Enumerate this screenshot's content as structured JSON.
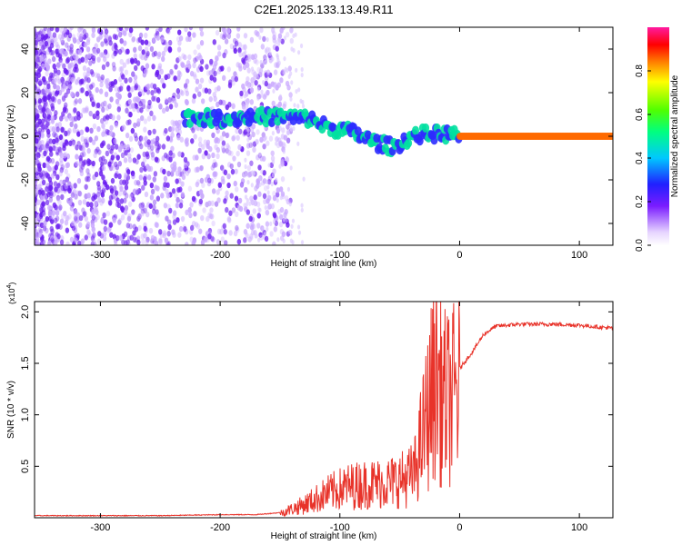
{
  "title": "C2E1.2025.133.13.49.R11",
  "chart_data": [
    {
      "type": "heatmap",
      "xlabel": "Height of straight line (km)",
      "ylabel": "Frequency (Hz)",
      "xlim": [
        -355,
        128
      ],
      "ylim": [
        -50,
        50
      ],
      "x_ticks": [
        -300,
        -200,
        -100,
        0,
        100
      ],
      "y_ticks": [
        -40,
        -20,
        0,
        20,
        40
      ],
      "colorbar": {
        "label": "Normalized spectral amplitude",
        "range": [
          0,
          1
        ],
        "ticks": [
          0.0,
          0.2,
          0.4,
          0.6,
          0.8
        ]
      },
      "ridge_trace": {
        "description_points_x": [
          -230,
          -200,
          -170,
          -150,
          -125,
          -110,
          -90,
          -70,
          -55,
          -40,
          -30,
          -20,
          -10,
          0,
          50,
          128
        ],
        "description_points_y": [
          9,
          8,
          9,
          9,
          8,
          4,
          2,
          -3,
          -5,
          0,
          1,
          1,
          1,
          0,
          0,
          0
        ]
      }
    },
    {
      "type": "line",
      "xlabel": "Height of straight line (km)",
      "ylabel": "SNR (10 * v/v)",
      "y_multiplier": "(x10",
      "y_multiplier_exp": "4",
      "xlim": [
        -355,
        128
      ],
      "ylim": [
        0,
        2.1
      ],
      "x_ticks": [
        -300,
        -200,
        -100,
        0,
        100
      ],
      "y_ticks": [
        0.5,
        1.0,
        1.5,
        2.0
      ],
      "series": [
        {
          "color": "#e8332a",
          "x": [
            -355,
            -300,
            -250,
            -200,
            -170,
            -150,
            -130,
            -110,
            -95,
            -80,
            -60,
            -45,
            -38,
            -30,
            -25,
            -20,
            -15,
            -10,
            -5,
            0,
            10,
            20,
            30,
            50,
            80,
            100,
            128
          ],
          "y": [
            0.02,
            0.02,
            0.02,
            0.03,
            0.03,
            0.05,
            0.15,
            0.28,
            0.35,
            0.38,
            0.4,
            0.45,
            0.5,
            1.0,
            1.3,
            1.7,
            1.4,
            1.35,
            1.4,
            1.45,
            1.6,
            1.78,
            1.86,
            1.88,
            1.88,
            1.87,
            1.84
          ]
        }
      ]
    }
  ]
}
